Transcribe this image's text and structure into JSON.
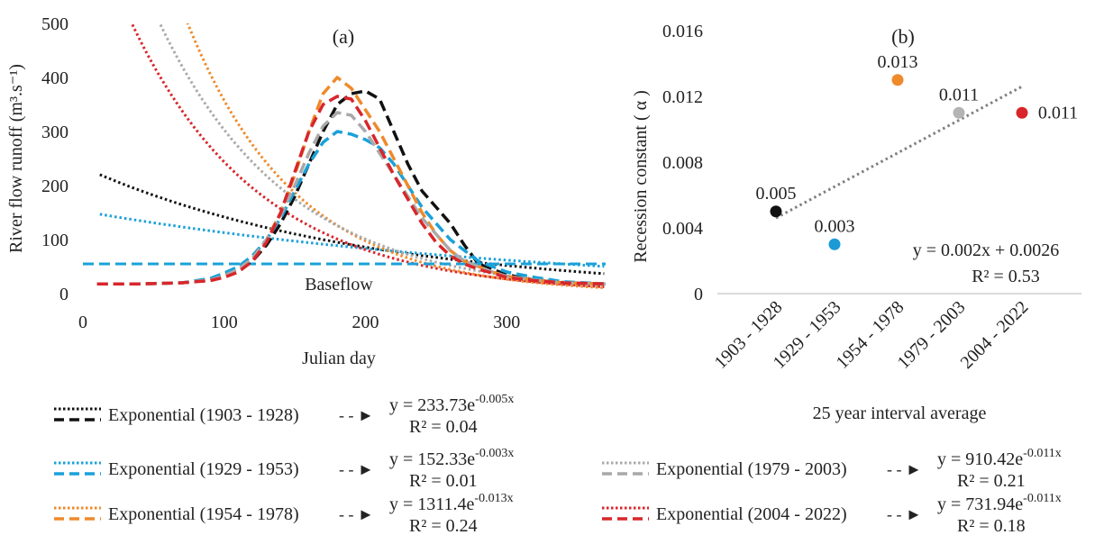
{
  "chart_data": [
    {
      "panel_label": "(a)",
      "type": "line",
      "xlabel": "Julian day",
      "ylabel": "River flow runoff (m³.s⁻¹)",
      "xlim": [
        0,
        370
      ],
      "ylim": [
        0,
        500
      ],
      "xticks": [
        0,
        100,
        200,
        300
      ],
      "yticks": [
        0,
        100,
        200,
        300,
        400,
        500
      ],
      "grid": false,
      "baseflow": {
        "label": "Baseflow",
        "y": 55,
        "color": "#1ba1d8"
      },
      "series": [
        {
          "name": "1903 - 1928",
          "color": "#111111",
          "trend": {
            "a": 233.73,
            "b": 0.005,
            "eq_text": "y = 233.73e",
            "exp_text": "-0.005x",
            "r2_text": "R² = 0.04"
          },
          "x": [
            10,
            40,
            70,
            90,
            100,
            110,
            120,
            130,
            140,
            150,
            160,
            170,
            180,
            190,
            200,
            210,
            220,
            230,
            240,
            250,
            260,
            270,
            280,
            290,
            300,
            320,
            340,
            370
          ],
          "y": [
            18,
            18,
            20,
            25,
            35,
            45,
            60,
            90,
            130,
            180,
            240,
            300,
            350,
            370,
            375,
            360,
            300,
            240,
            190,
            160,
            130,
            90,
            55,
            45,
            35,
            25,
            20,
            18
          ]
        },
        {
          "name": "1929 - 1953",
          "color": "#1ba1d8",
          "trend": {
            "a": 152.33,
            "b": 0.003,
            "eq_text": "y = 152.33e",
            "exp_text": "-0.003x",
            "r2_text": "R² = 0.01"
          },
          "x": [
            10,
            40,
            70,
            90,
            100,
            110,
            120,
            130,
            140,
            150,
            160,
            170,
            180,
            190,
            200,
            210,
            220,
            230,
            240,
            250,
            260,
            270,
            280,
            290,
            300,
            320,
            340,
            370
          ],
          "y": [
            18,
            18,
            20,
            28,
            38,
            50,
            70,
            100,
            140,
            190,
            240,
            280,
            300,
            295,
            285,
            270,
            240,
            200,
            160,
            130,
            100,
            80,
            60,
            50,
            40,
            30,
            22,
            18
          ]
        },
        {
          "name": "1954 - 1978",
          "color": "#ee8a2a",
          "trend": {
            "a": 1311.4,
            "b": 0.013,
            "eq_text": "y = 1311.4e",
            "exp_text": "-0.013x",
            "r2_text": "R² = 0.24"
          },
          "x": [
            10,
            40,
            70,
            90,
            100,
            110,
            120,
            130,
            140,
            150,
            160,
            170,
            180,
            190,
            200,
            210,
            220,
            230,
            240,
            250,
            260,
            270,
            280,
            290,
            300,
            320,
            340,
            370
          ],
          "y": [
            18,
            18,
            20,
            25,
            32,
            45,
            65,
            100,
            150,
            220,
            300,
            370,
            400,
            380,
            340,
            300,
            250,
            200,
            150,
            110,
            80,
            60,
            50,
            40,
            32,
            25,
            20,
            18
          ]
        },
        {
          "name": "1979 - 2003",
          "color": "#a9a9a9",
          "trend": {
            "a": 910.42,
            "b": 0.011,
            "eq_text": "y = 910.42e",
            "exp_text": "-0.011x",
            "r2_text": "R² = 0.21"
          },
          "x": [
            10,
            40,
            70,
            90,
            100,
            110,
            120,
            130,
            140,
            150,
            160,
            170,
            180,
            190,
            200,
            210,
            220,
            230,
            240,
            250,
            260,
            270,
            280,
            290,
            300,
            320,
            340,
            370
          ],
          "y": [
            18,
            18,
            20,
            25,
            33,
            45,
            65,
            100,
            145,
            200,
            260,
            310,
            335,
            330,
            300,
            260,
            220,
            180,
            140,
            110,
            80,
            60,
            50,
            40,
            32,
            25,
            20,
            18
          ]
        },
        {
          "name": "2004 - 2022",
          "color": "#d8262b",
          "trend": {
            "a": 731.94,
            "b": 0.011,
            "eq_text": "y = 731.94e",
            "exp_text": "-0.011x",
            "r2_text": "R² = 0.18"
          },
          "x": [
            10,
            40,
            70,
            90,
            100,
            110,
            120,
            130,
            140,
            150,
            160,
            170,
            180,
            190,
            200,
            210,
            220,
            230,
            240,
            250,
            260,
            270,
            280,
            290,
            300,
            320,
            340,
            370
          ],
          "y": [
            18,
            18,
            20,
            24,
            30,
            40,
            60,
            95,
            150,
            225,
            300,
            350,
            365,
            360,
            320,
            270,
            220,
            175,
            130,
            95,
            70,
            55,
            45,
            38,
            30,
            24,
            20,
            18
          ]
        }
      ]
    },
    {
      "panel_label": "(b)",
      "type": "scatter",
      "xlabel": "25 year interval average",
      "ylabel": "Recession constant ( α )",
      "ylim": [
        0,
        0.016
      ],
      "yticks": [
        "0",
        "0.004",
        "0.008",
        "0.012",
        "0.016"
      ],
      "grid": false,
      "categories": [
        "1903 - 1928",
        "1929 - 1953",
        "1954 - 1978",
        "1979 - 2003",
        "2004 - 2022"
      ],
      "values": [
        0.005,
        0.003,
        0.013,
        0.011,
        0.011
      ],
      "point_labels": [
        "0.005",
        "0.003",
        "0.013",
        "0.011",
        "0.011"
      ],
      "colors": [
        "#111111",
        "#1b9ad6",
        "#ee8a2a",
        "#b4b4b4",
        "#d8262b"
      ],
      "trendline": {
        "slope": 0.002,
        "intercept": 0.0026,
        "eq_text": "y = 0.002x + 0.0026",
        "r2_text": "R² = 0.53",
        "color": "#808080"
      }
    }
  ],
  "legend": {
    "prefix": "Exponential (",
    "suffix": ")",
    "arrow": "- - ►"
  }
}
